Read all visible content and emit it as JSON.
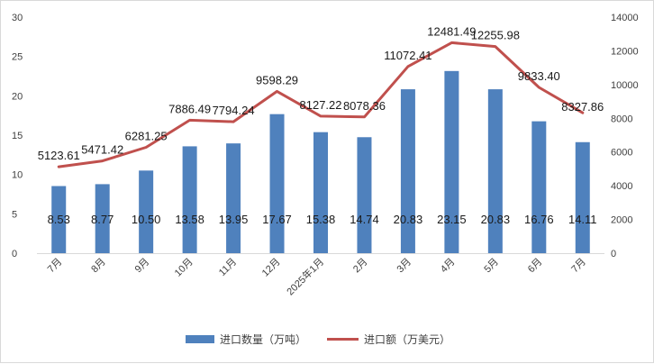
{
  "chart_data": {
    "type": "bar",
    "categories": [
      "7月",
      "8月",
      "9月",
      "10月",
      "11月",
      "12月",
      "2025年1月",
      "2月",
      "3月",
      "4月",
      "5月",
      "6月",
      "7月"
    ],
    "series": [
      {
        "name": "进口数量（万吨）",
        "type": "bar",
        "axis": "left",
        "color": "#4f81bd",
        "values": [
          8.53,
          8.77,
          10.5,
          13.58,
          13.95,
          17.67,
          15.38,
          14.74,
          20.83,
          23.15,
          20.83,
          16.76,
          14.11
        ],
        "labels": [
          "8.53",
          "8.77",
          "10.50",
          "13.58",
          "13.95",
          "17.67",
          "15.38",
          "14.74",
          "20.83",
          "23.15",
          "20.83",
          "16.76",
          "14.11"
        ]
      },
      {
        "name": "进口额（万美元）",
        "type": "line",
        "axis": "right",
        "color": "#c0504d",
        "values": [
          5123.61,
          5471.42,
          6281.25,
          7886.49,
          7794.24,
          9598.29,
          8127.22,
          8078.36,
          11072.41,
          12481.49,
          12255.98,
          9833.4,
          8327.86
        ],
        "labels": [
          "5123.61",
          "5471.42",
          "6281.25",
          "7886.49",
          "7794.24",
          "9598.29",
          "8127.22",
          "8078.36",
          "11072.41",
          "12481.49",
          "12255.98",
          "9833.40",
          "8327.86"
        ]
      }
    ],
    "y_left": {
      "min": 0,
      "max": 30,
      "ticks": [
        "0",
        "5",
        "10",
        "15",
        "20",
        "25",
        "30"
      ]
    },
    "y_right": {
      "min": 0,
      "max": 14000,
      "ticks": [
        "0",
        "2000",
        "4000",
        "6000",
        "8000",
        "10000",
        "12000",
        "14000"
      ]
    },
    "grid": false,
    "legend_position": "bottom"
  }
}
